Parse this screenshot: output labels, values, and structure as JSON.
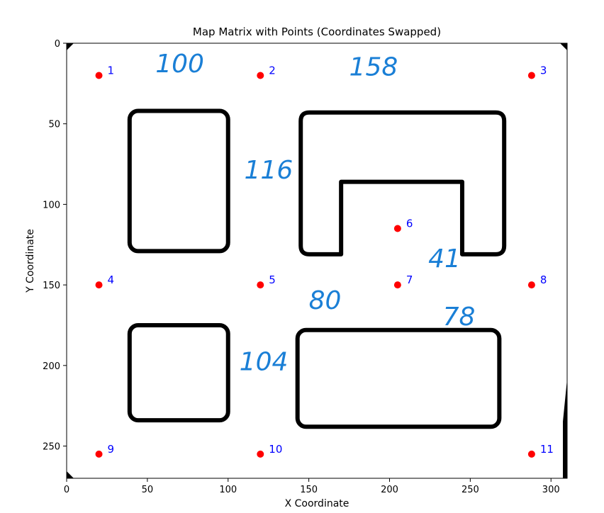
{
  "chart_data": {
    "type": "scatter",
    "title": "Map Matrix with Points (Coordinates Swapped)",
    "xlabel": "X Coordinate",
    "ylabel": "Y Coordinate",
    "xlim": [
      0,
      310
    ],
    "ylim": [
      270,
      0
    ],
    "y_inverted": true,
    "xticks": [
      0,
      50,
      100,
      150,
      200,
      250,
      300
    ],
    "yticks": [
      0,
      50,
      100,
      150,
      200,
      250
    ],
    "grid": false,
    "point_color": "#ff0000",
    "label_color": "#0000ff",
    "annotation_color": "#1a7fd6",
    "obstacle_color": "#000000",
    "points": [
      {
        "label": "1",
        "x": 20,
        "y": 20
      },
      {
        "label": "2",
        "x": 120,
        "y": 20
      },
      {
        "label": "3",
        "x": 288,
        "y": 20
      },
      {
        "label": "4",
        "x": 20,
        "y": 150
      },
      {
        "label": "5",
        "x": 120,
        "y": 150
      },
      {
        "label": "6",
        "x": 205,
        "y": 115
      },
      {
        "label": "7",
        "x": 205,
        "y": 150
      },
      {
        "label": "8",
        "x": 288,
        "y": 150
      },
      {
        "label": "9",
        "x": 20,
        "y": 255
      },
      {
        "label": "10",
        "x": 120,
        "y": 255
      },
      {
        "label": "11",
        "x": 288,
        "y": 255
      }
    ],
    "obstacles": [
      {
        "shape": "rounded-rect",
        "x0": 39,
        "y0": 42,
        "x1": 100,
        "y1": 129
      },
      {
        "shape": "rounded-rect",
        "x0": 39,
        "y0": 175,
        "x1": 100,
        "y1": 234
      },
      {
        "shape": "rounded-rect",
        "x0": 143,
        "y0": 178,
        "x1": 268,
        "y1": 238
      },
      {
        "shape": "u-shape",
        "outer": [
          145,
          43,
          271,
          131
        ],
        "inner": [
          170,
          86,
          245,
          131
        ]
      }
    ],
    "annotations": [
      {
        "text": "100",
        "x": 55,
        "y": 18
      },
      {
        "text": "158",
        "x": 175,
        "y": 20
      },
      {
        "text": "116",
        "x": 110,
        "y": 84
      },
      {
        "text": "41",
        "x": 224,
        "y": 139
      },
      {
        "text": "80",
        "x": 150,
        "y": 165
      },
      {
        "text": "78",
        "x": 233,
        "y": 175
      },
      {
        "text": "104",
        "x": 107,
        "y": 203
      }
    ]
  }
}
